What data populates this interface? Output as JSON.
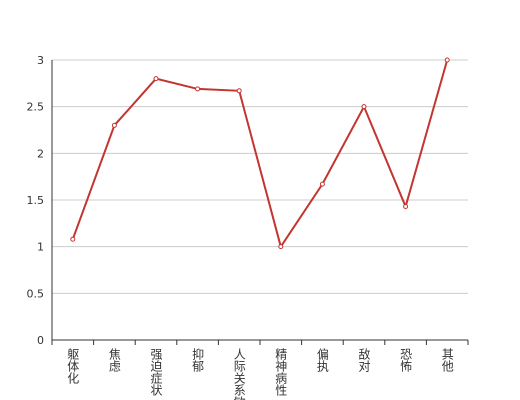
{
  "chart_data": {
    "type": "line",
    "categories": [
      "躯体化",
      "焦虑",
      "强迫症状",
      "抑郁",
      "人际关系敏感",
      "精神病性",
      "偏执",
      "敌对",
      "恐怖",
      "其他"
    ],
    "values": [
      1.08,
      2.3,
      2.8,
      2.69,
      2.67,
      1.0,
      1.67,
      2.5,
      1.43,
      3.0
    ],
    "color": "#c23531",
    "ylim": [
      0,
      3
    ],
    "yticks": [
      0,
      0.5,
      1,
      1.5,
      2,
      2.5,
      3
    ],
    "grid": true
  }
}
